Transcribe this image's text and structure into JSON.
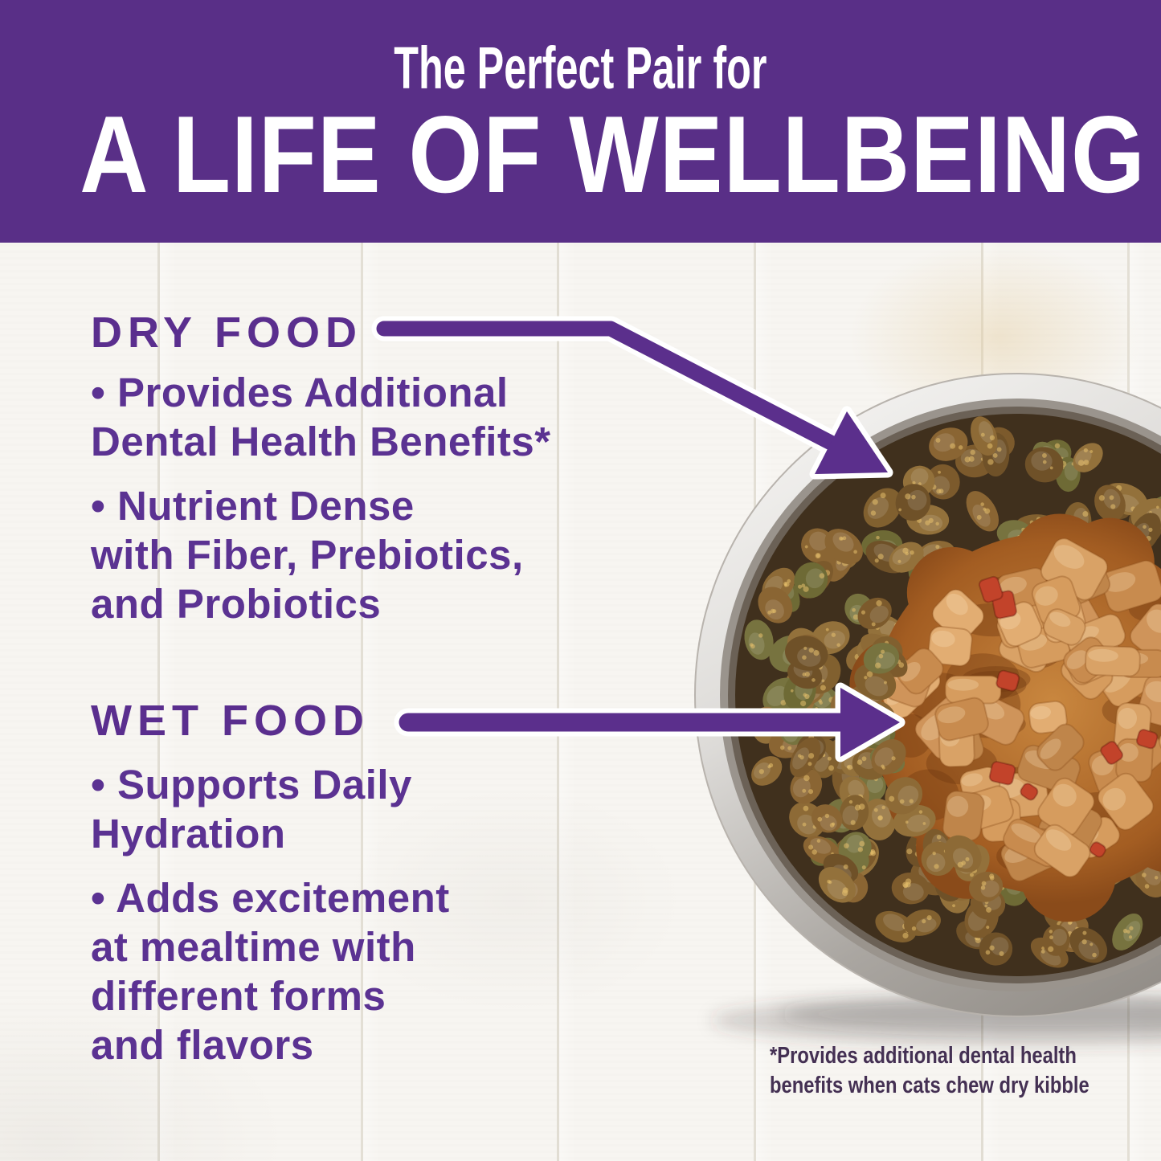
{
  "header": {
    "eyebrow": "The Perfect Pair for",
    "title": "A LIFE OF WELLBEING",
    "bg_color": "#592f87",
    "text_color": "#ffffff"
  },
  "sections": [
    {
      "heading": "DRY FOOD",
      "bullets": [
        {
          "lines": [
            "• Provides Additional",
            "Dental Health Benefits*"
          ]
        },
        {
          "lines": [
            "• Nutrient Dense",
            "with Fiber, Prebiotics,",
            "and Probiotics"
          ]
        }
      ]
    },
    {
      "heading": "WET FOOD",
      "bullets": [
        {
          "lines": [
            "• Supports Daily",
            "Hydration"
          ]
        },
        {
          "lines": [
            "• Adds excitement",
            "at mealtime with",
            "different forms",
            "and flavors"
          ]
        }
      ]
    }
  ],
  "footnote": {
    "lines": [
      "*Provides additional dental health",
      "benefits when cats chew dry kibble"
    ]
  },
  "illustration": {
    "subject": "stainless-steel bowl of dry kibble surrounding wet food chunks in gravy"
  },
  "colors": {
    "band_purple": "#592f87",
    "text_purple": "#5b3292",
    "arrow_purple": "#5b2f8c",
    "footnote_purple": "#443053"
  }
}
